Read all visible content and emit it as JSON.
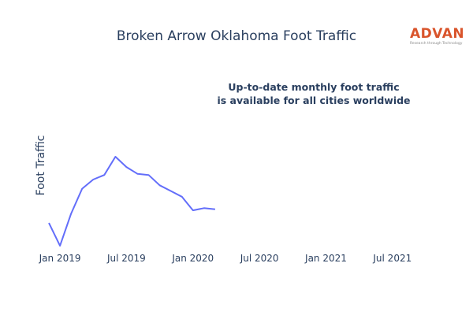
{
  "chart_data": {
    "type": "line",
    "title": "Broken Arrow Oklahoma Foot Traffic",
    "ylabel": "Foot Traffic",
    "xlabel": "",
    "x_ticks": [
      "Jan 2019",
      "Jul 2019",
      "Jan 2020",
      "Jul 2020",
      "Jan 2021",
      "Jul 2021"
    ],
    "xlim": [
      "2018-12",
      "2021-10"
    ],
    "ylim": [
      0,
      100
    ],
    "y_tick_labels_visible": false,
    "grid": false,
    "series": [
      {
        "color": "#636efa",
        "x": [
          "2018-12",
          "2019-01",
          "2019-02",
          "2019-03",
          "2019-04",
          "2019-05",
          "2019-06",
          "2019-07",
          "2019-08",
          "2019-09",
          "2019-10",
          "2019-11",
          "2019-12",
          "2020-01",
          "2020-02",
          "2020-03",
          "2020-04"
        ],
        "values": [
          22,
          2,
          30,
          52,
          60,
          64,
          80,
          71,
          65,
          64,
          55,
          50,
          45,
          33,
          35,
          34,
          null
        ]
      }
    ],
    "annotation": {
      "lines": [
        "Up-to-date monthly foot traffic",
        "is available for all cities worldwide"
      ]
    }
  },
  "brand": {
    "name": "ADVAN",
    "tagline": "Research through Technology",
    "color": "#d9542b"
  }
}
